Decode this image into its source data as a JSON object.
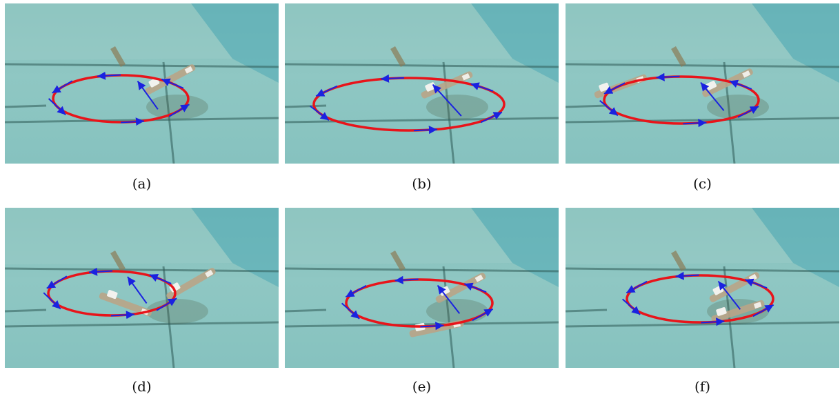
{
  "figure": {
    "colors": {
      "pool_water": "#8fc7c3",
      "pool_wall": "#5fb0b8",
      "tile_line": "#2f5b57",
      "trajectory": "#e8141a",
      "arrow": "#1a22e0",
      "robot_body": "#b9a487"
    },
    "panels": [
      {
        "caption": "(a)"
      },
      {
        "caption": "(b)"
      },
      {
        "caption": "(c)"
      },
      {
        "caption": "(d)"
      },
      {
        "caption": "(e)"
      },
      {
        "caption": "(f)"
      }
    ]
  }
}
